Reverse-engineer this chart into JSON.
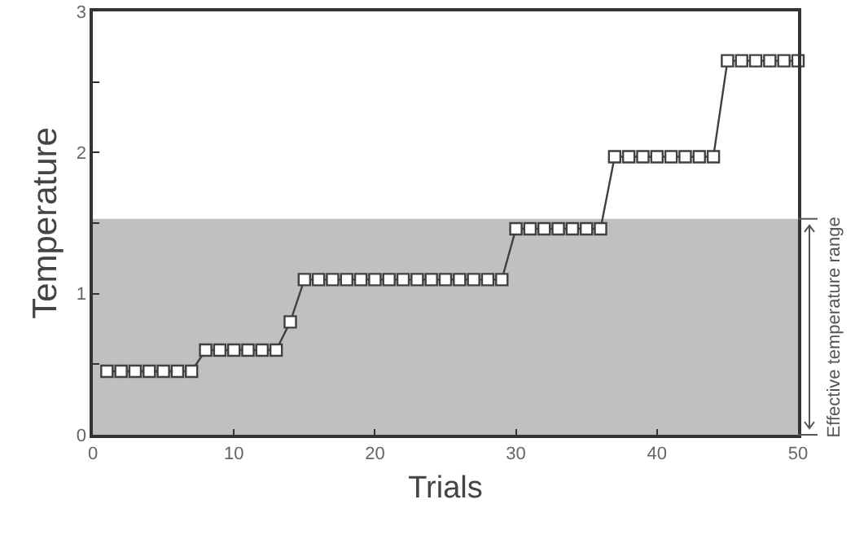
{
  "chart_data": {
    "type": "line",
    "xlabel": "Trials",
    "ylabel": "Temperature",
    "x": [
      1,
      2,
      3,
      4,
      5,
      6,
      7,
      8,
      9,
      10,
      11,
      12,
      13,
      14,
      15,
      16,
      17,
      18,
      19,
      20,
      21,
      22,
      23,
      24,
      25,
      26,
      27,
      28,
      29,
      30,
      31,
      32,
      33,
      34,
      35,
      36,
      37,
      38,
      39,
      40,
      41,
      42,
      43,
      44,
      45,
      46,
      47,
      48,
      49,
      50
    ],
    "series": [
      {
        "color": "#404040",
        "values": [
          0.45,
          0.45,
          0.45,
          0.45,
          0.45,
          0.45,
          0.45,
          0.6,
          0.6,
          0.6,
          0.6,
          0.6,
          0.6,
          0.8,
          1.1,
          1.1,
          1.1,
          1.1,
          1.1,
          1.1,
          1.1,
          1.1,
          1.1,
          1.1,
          1.1,
          1.1,
          1.1,
          1.1,
          1.1,
          1.46,
          1.46,
          1.46,
          1.46,
          1.46,
          1.46,
          1.46,
          1.97,
          1.97,
          1.97,
          1.97,
          1.97,
          1.97,
          1.97,
          1.97,
          2.65,
          2.65,
          2.65,
          2.65,
          2.65,
          2.65
        ]
      }
    ],
    "xlim": [
      0,
      50
    ],
    "xticks": [
      0,
      10,
      20,
      30,
      40,
      50
    ],
    "ylim": [
      0,
      3
    ],
    "yticks": [
      0,
      {
        "value": 0.5,
        "label": null
      },
      1,
      {
        "value": 1.5,
        "label": null
      },
      2,
      {
        "value": 2.5,
        "label": null
      },
      3
    ],
    "bands": [
      {
        "axis": "y",
        "from": 0,
        "to": 1.53,
        "label": "Effective temperature range",
        "color": "#c0c0c0"
      }
    ],
    "marker": "square",
    "line_style": "solid"
  }
}
